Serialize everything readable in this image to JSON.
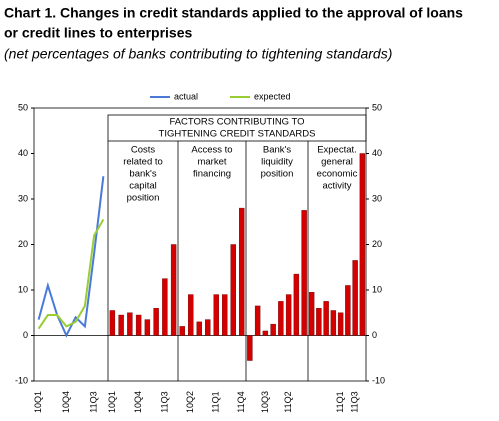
{
  "chart_data": {
    "type": "combo",
    "title": [
      "Chart 1. Changes in credit standards applied to the approval of loans",
      "or credit lines to enterprises"
    ],
    "subtitle": "(net percentages of banks contributing to tightening standards)",
    "header": [
      "FACTORS CONTRIBUTING TO",
      "TIGHTENING CREDIT STANDARDS"
    ],
    "ylim": [
      -10,
      50
    ],
    "yticks": [
      -10,
      0,
      10,
      20,
      30,
      40,
      50
    ],
    "y2lim": [
      -10,
      50
    ],
    "y2ticks": [
      -10,
      0,
      10,
      20,
      30,
      40,
      50
    ],
    "legend": "top",
    "panels": [
      {
        "type": "line",
        "categories": [
          "10Q1",
          null,
          null,
          "10Q4",
          null,
          null,
          "11Q3",
          null
        ],
        "series": [
          {
            "name": "actual",
            "color": "#4a7ad8",
            "values": [
              3.5,
              11,
              4.5,
              0,
              4,
              2,
              18,
              35
            ]
          },
          {
            "name": "expected",
            "color": "#9acd32",
            "values": [
              1.5,
              4.5,
              4.5,
              2,
              3,
              6.5,
              22,
              25.5
            ]
          }
        ]
      },
      {
        "type": "bar",
        "color": "#d40000",
        "lines": [
          "Costs",
          "related to",
          "bank's",
          "capital",
          "position"
        ],
        "categories": [
          "10Q1",
          null,
          null,
          "10Q4",
          null,
          null,
          "11Q3",
          null
        ],
        "values": [
          5.5,
          4.5,
          5,
          4.5,
          3.5,
          6,
          12.5,
          20
        ]
      },
      {
        "type": "bar",
        "color": "#d40000",
        "lines": [
          "Access to",
          "market",
          "financing"
        ],
        "categories": [
          null,
          "10Q2",
          null,
          null,
          "11Q1",
          null,
          null,
          "11Q4"
        ],
        "values": [
          2,
          9,
          3,
          3.5,
          9,
          9,
          20,
          28
        ]
      },
      {
        "type": "bar",
        "color": "#d40000",
        "lines": [
          "Bank's",
          "liquidity",
          "position"
        ],
        "categories": [
          null,
          null,
          "10Q3",
          null,
          null,
          "11Q2",
          null,
          null
        ],
        "values": [
          -5.5,
          6.5,
          1,
          2.5,
          7.5,
          9,
          13.5,
          27.5
        ]
      },
      {
        "type": "bar",
        "color": "#d40000",
        "lines": [
          "Expectat.",
          "general",
          "economic",
          "activity"
        ],
        "categories": [
          null,
          null,
          null,
          null,
          "11Q1",
          null,
          "11Q3",
          null
        ],
        "values": [
          9.5,
          6,
          7.5,
          5.5,
          5,
          11,
          16.5,
          40
        ]
      }
    ]
  }
}
